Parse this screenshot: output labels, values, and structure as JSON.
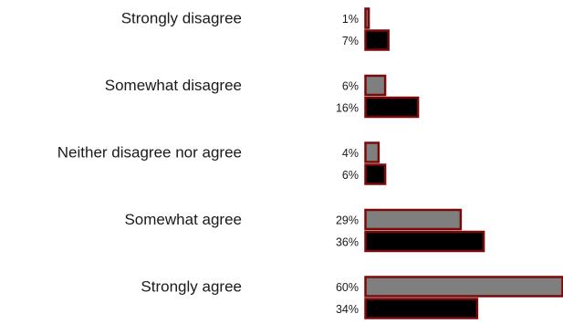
{
  "chart_data": {
    "type": "bar",
    "orientation": "horizontal",
    "categories": [
      "Strongly disagree",
      "Somewhat disagree",
      "Neither disagree nor agree",
      "Somewhat agree",
      "Strongly agree"
    ],
    "series": [
      {
        "values": [
          1,
          6,
          4,
          29,
          60
        ],
        "value_labels": [
          "1%",
          "6%",
          "4%",
          "29%",
          "60%"
        ],
        "color": "#7f7f7f"
      },
      {
        "values": [
          7,
          16,
          6,
          36,
          34
        ],
        "value_labels": [
          "7%",
          "16%",
          "6%",
          "36%",
          "34%"
        ],
        "color": "#000000"
      }
    ],
    "bar_border_color": "#7a0a0a",
    "xlim": [
      0,
      60
    ],
    "grid": false,
    "legend": "none"
  }
}
